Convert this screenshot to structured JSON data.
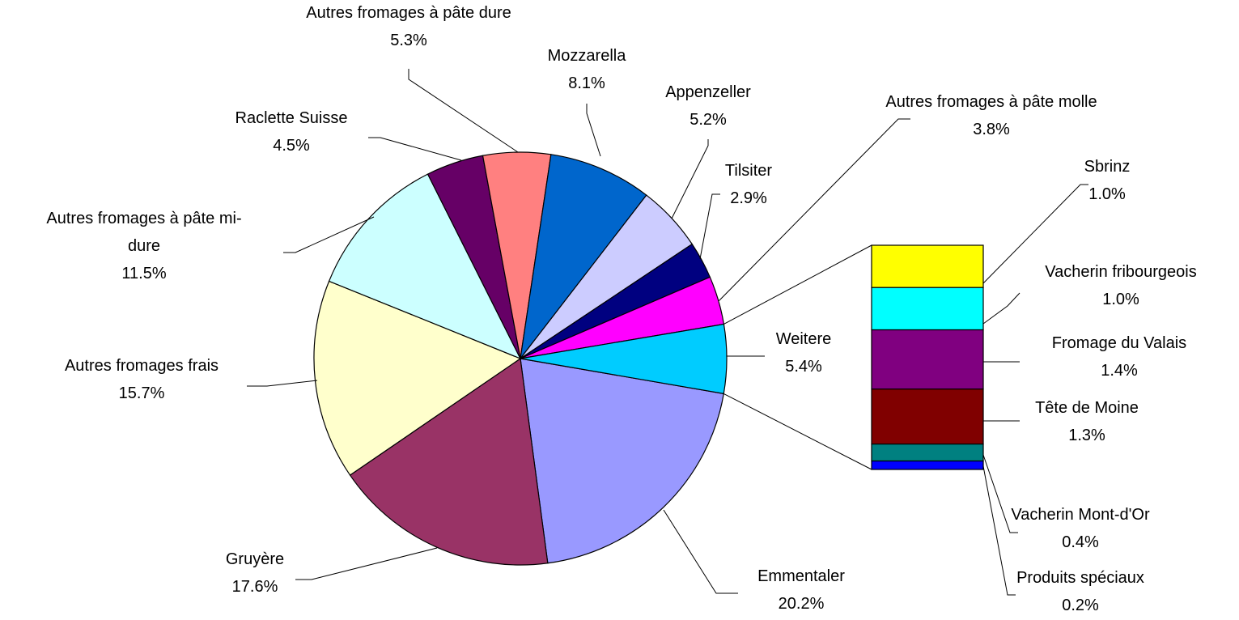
{
  "chart_data": {
    "type": "pie",
    "categories": [
      "Emmentaler",
      "Gruyère",
      "Autres fromages frais",
      "Autres fromages à pâte mi-dure",
      "Raclette Suisse",
      "Autres fromages à pâte dure",
      "Mozzarella",
      "Appenzeller",
      "Tilsiter",
      "Autres fromages à pâte molle",
      "Weitere"
    ],
    "values": [
      20.2,
      17.6,
      15.7,
      11.5,
      4.5,
      5.3,
      8.1,
      5.2,
      2.9,
      3.8,
      5.4
    ],
    "value_labels": [
      "20.2%",
      "17.6%",
      "15.7%",
      "11.5%",
      "4.5%",
      "5.3%",
      "8.1%",
      "5.2%",
      "2.9%",
      "3.8%",
      "5.4%"
    ],
    "colors": [
      "#9999ff",
      "#993366",
      "#ffffcc",
      "#ccffff",
      "#660066",
      "#ff8080",
      "#0066cc",
      "#ccccff",
      "#000080",
      "#ff00ff",
      "#00ccff"
    ],
    "bar_of_pie": {
      "categories": [
        "Sbrinz",
        "Vacherin fribourgeois",
        "Fromage du Valais",
        "Tête de Moine",
        "Vacherin Mont-d'Or",
        "Produits spéciaux"
      ],
      "values": [
        1.0,
        1.0,
        1.4,
        1.3,
        0.4,
        0.2
      ],
      "value_labels": [
        "1.0%",
        "1.0%",
        "1.4%",
        "1.3%",
        "0.4%",
        "0.2%"
      ],
      "colors": [
        "#ffff00",
        "#00ffff",
        "#800080",
        "#800000",
        "#008080",
        "#0000ff"
      ]
    }
  }
}
